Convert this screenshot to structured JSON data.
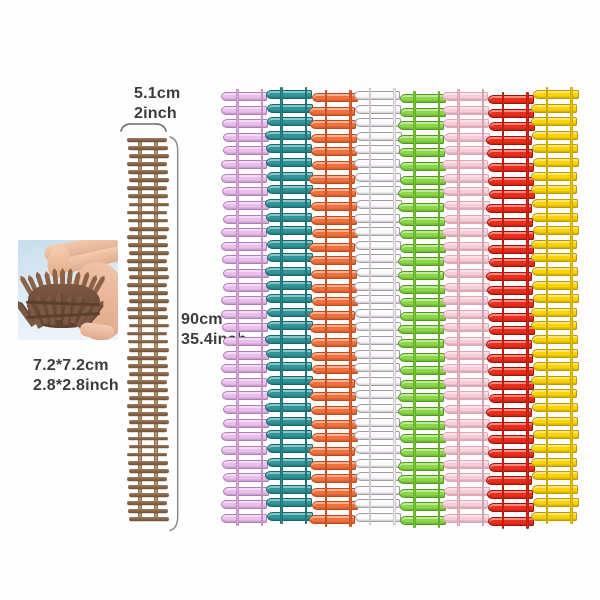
{
  "page": {
    "background": "#fefefe",
    "text_color": "#3b3b3b"
  },
  "annotations": {
    "width_label": {
      "line1": "5.1cm",
      "line2": "2inch"
    },
    "height_label": {
      "line1": "90cm",
      "line2": "35.4inch"
    },
    "roll_size_label": {
      "line1": "7.2*7.2cm",
      "line2": "2.8*2.8inch"
    }
  },
  "measured_strip": {
    "rail_color": "#b6926f",
    "rung_dark": "#6f5138",
    "rung_light": "#9d7c60",
    "rung_count": 48
  },
  "fence_grid": {
    "row_count": 32,
    "column_offsets": [
      0,
      -2,
      1,
      -1,
      2,
      0,
      3,
      -2
    ],
    "strips": [
      {
        "name": "violet",
        "fill": "#ebbfed",
        "outline": "#b07cba",
        "rail": "#dfa9e2"
      },
      {
        "name": "teal",
        "fill": "#2f969a",
        "outline": "#15686c",
        "rail": "#27878b"
      },
      {
        "name": "orange",
        "fill": "#f4713d",
        "outline": "#bf4c1d",
        "rail": "#e4602e"
      },
      {
        "name": "white",
        "fill": "#fcfafc",
        "outline": "#a39ca4",
        "rail": "#efeaef"
      },
      {
        "name": "green",
        "fill": "#8ad747",
        "outline": "#4f9c1c",
        "rail": "#77c936"
      },
      {
        "name": "pink",
        "fill": "#f9cdd8",
        "outline": "#e8a2b6",
        "rail": "#f2bccb"
      },
      {
        "name": "red",
        "fill": "#ee2d1b",
        "outline": "#9e1408",
        "rail": "#da2412"
      },
      {
        "name": "yellow",
        "fill": "#fdd400",
        "outline": "#c0990a",
        "rail": "#eec400"
      }
    ]
  },
  "photo": {
    "sky_top": "#c7ddec",
    "sky_bottom": "#f0f6fa",
    "skin": "#eebfa4",
    "fence_dark": "#5d3f2e",
    "fence_mid": "#7d5843",
    "fence_light": "#8a6349"
  }
}
